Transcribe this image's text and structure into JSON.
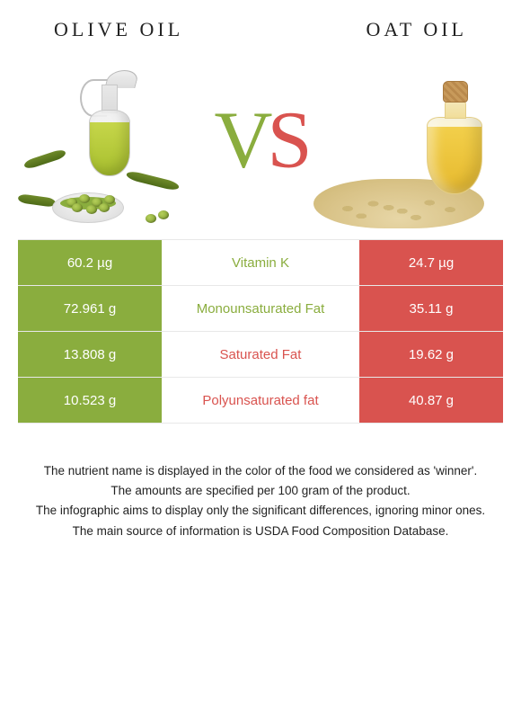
{
  "header": {
    "left_title": "OLIVE OIL",
    "right_title": "OAT OIL",
    "vs_v": "V",
    "vs_s": "S"
  },
  "colors": {
    "left": "#8aad3e",
    "right": "#d9534f",
    "row_border": "#e8e8e8"
  },
  "table": {
    "type": "comparison-table",
    "left_column_bg": "#8aad3e",
    "right_column_bg": "#d9534f",
    "text_color_on_fill": "#ffffff",
    "label_fontsize": 15,
    "value_fontsize": 15,
    "rows": [
      {
        "label": "Vitamin K",
        "left": "60.2 µg",
        "right": "24.7 µg",
        "winner": "left"
      },
      {
        "label": "Monounsaturated Fat",
        "left": "72.961 g",
        "right": "35.11 g",
        "winner": "left"
      },
      {
        "label": "Saturated Fat",
        "left": "13.808 g",
        "right": "19.62 g",
        "winner": "right"
      },
      {
        "label": "Polyunsaturated fat",
        "left": "10.523 g",
        "right": "40.87 g",
        "winner": "right"
      }
    ]
  },
  "notes": [
    "The nutrient name is displayed in the color of the food we considered as 'winner'.",
    "The amounts are specified per 100 gram of the product.",
    "The infographic aims to display only the significant differences, ignoring minor ones.",
    "The main source of information is USDA Food Composition Database."
  ]
}
